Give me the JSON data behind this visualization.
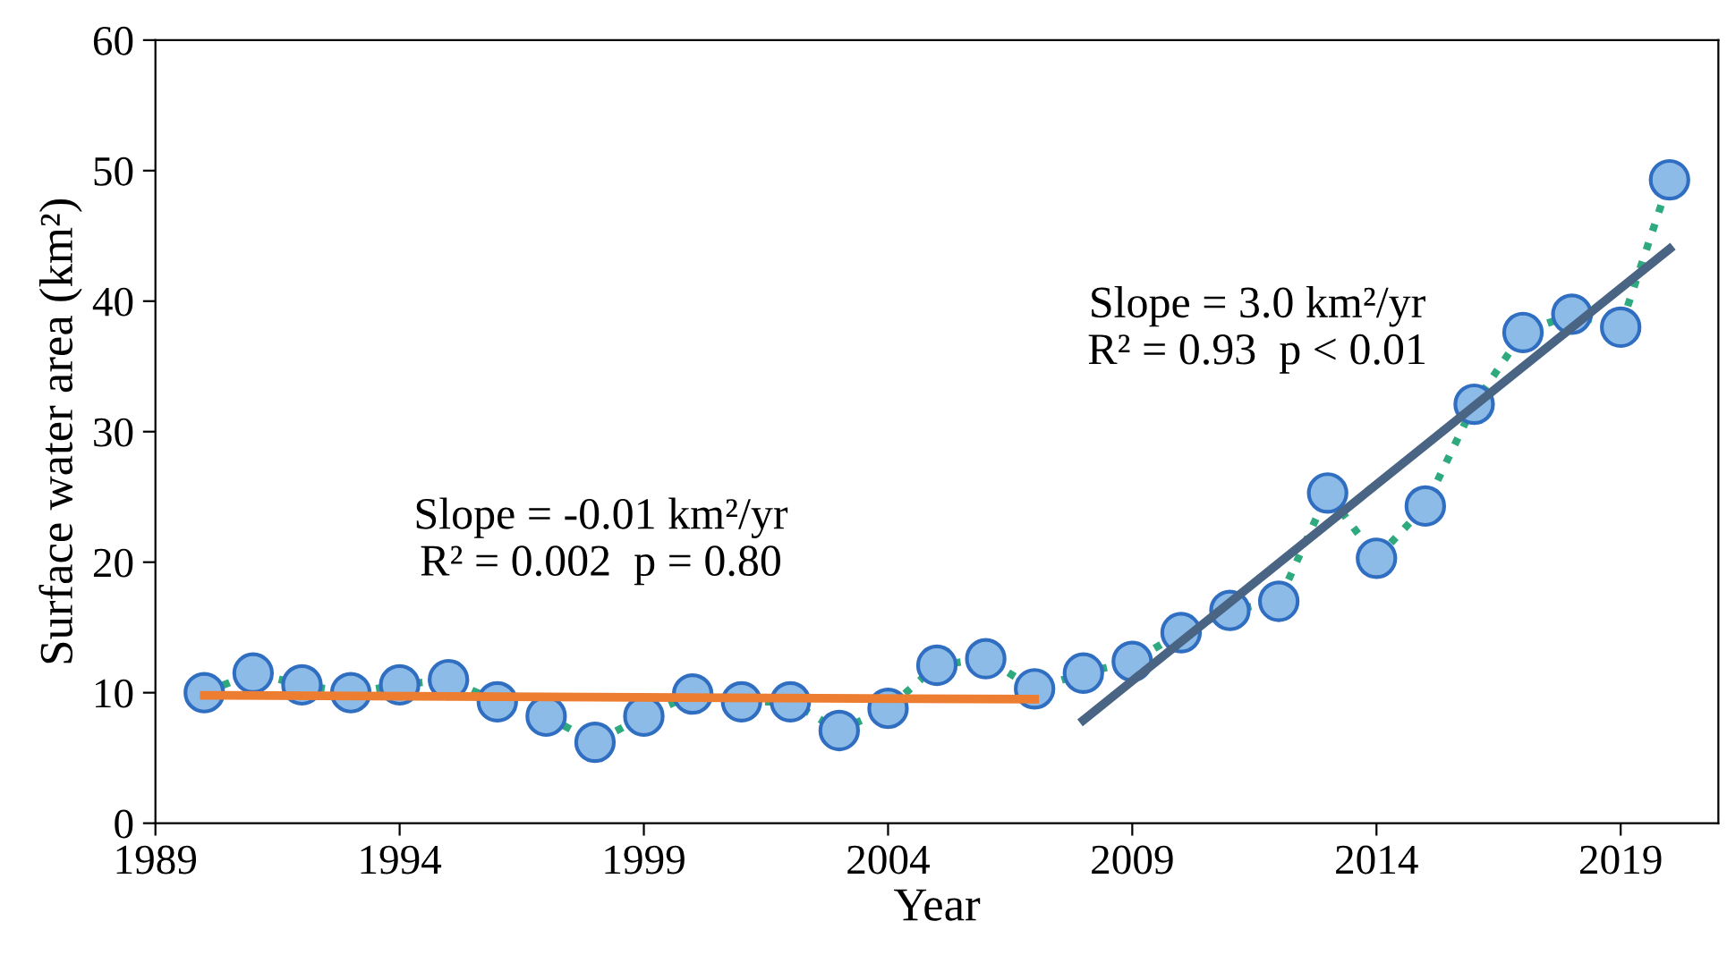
{
  "chart_data": {
    "type": "line",
    "xlabel": "Year",
    "ylabel": "Surface water area (km²)",
    "xlim": [
      1989,
      2021
    ],
    "xticks": [
      1989,
      1994,
      1999,
      2004,
      2009,
      2014,
      2019
    ],
    "ylim": [
      0,
      60
    ],
    "yticks": [
      0,
      10,
      20,
      30,
      40,
      50,
      60
    ],
    "grid": false,
    "legend": false,
    "series": [
      {
        "color": "#2eaa7e",
        "line_style": "dotted",
        "marker": "none",
        "x": [
          1990,
          1991,
          1992,
          1993,
          1994,
          1995,
          1996,
          1997,
          1998,
          1999,
          2000,
          2001,
          2002,
          2003,
          2004,
          2005,
          2006,
          2007,
          2008,
          2009,
          2010,
          2011,
          2012,
          2013,
          2014,
          2015,
          2016,
          2017,
          2018,
          2019,
          2020
        ],
        "values": [
          10.0,
          11.5,
          10.6,
          10.0,
          10.6,
          11.0,
          9.3,
          8.2,
          6.2,
          8.2,
          9.9,
          9.3,
          9.3,
          7.1,
          8.8,
          12.1,
          12.6,
          10.3,
          11.5,
          12.4,
          14.6,
          16.3,
          17.0,
          25.3,
          20.3,
          24.3,
          32.1,
          37.6,
          39.0,
          38.0,
          49.3
        ]
      },
      {
        "color": "#ed7d31",
        "line_style": "solid",
        "marker": "none",
        "x": [
          1990,
          2007
        ],
        "values": [
          9.8,
          9.5
        ]
      },
      {
        "color": "#4a6584",
        "line_style": "solid",
        "marker": "none",
        "x": [
          2008,
          2020
        ],
        "values": [
          7.9,
          44.0
        ]
      },
      {
        "type": "scatter",
        "color": "#8dbbe8",
        "marker": "circle",
        "x": [
          1990,
          1991,
          1992,
          1993,
          1994,
          1995,
          1996,
          1997,
          1998,
          1999,
          2000,
          2001,
          2002,
          2003,
          2004,
          2005,
          2006,
          2007,
          2008,
          2009,
          2010,
          2011,
          2012,
          2013,
          2014,
          2015,
          2016,
          2017,
          2018,
          2019,
          2020
        ],
        "values": [
          10.0,
          11.5,
          10.6,
          10.0,
          10.6,
          11.0,
          9.3,
          8.2,
          6.2,
          8.2,
          9.9,
          9.3,
          9.3,
          7.1,
          8.8,
          12.1,
          12.6,
          10.3,
          11.5,
          12.4,
          14.6,
          16.3,
          17.0,
          25.3,
          20.3,
          24.3,
          32.1,
          37.6,
          39.0,
          38.0,
          49.3
        ]
      }
    ],
    "annotations": [
      "Slope = -0.01 km²/yr\nR² = 0.002  p = 0.80",
      "Slope = 3.0 km²/yr\nR² = 0.93  p < 0.01"
    ]
  }
}
